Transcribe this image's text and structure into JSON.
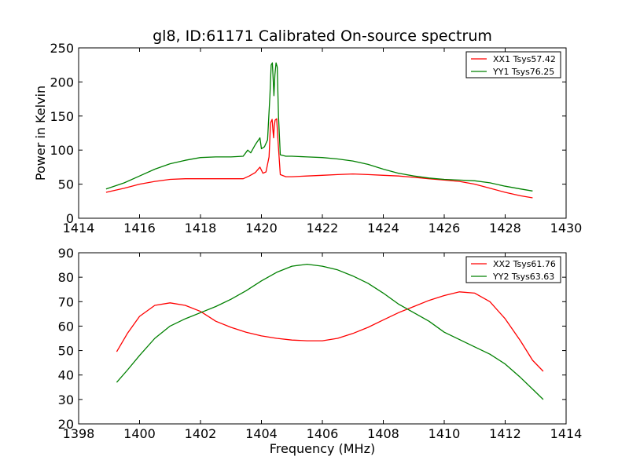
{
  "page": {
    "title": "gl8, ID:61171 Calibrated On-source spectrum"
  },
  "chart_data": [
    {
      "type": "line",
      "title": "gl8, ID:61171 Calibrated On-source spectrum",
      "xlabel": "",
      "ylabel": "Power in Kelvin",
      "xlim": [
        1414,
        1430
      ],
      "ylim": [
        0,
        250
      ],
      "xticks": [
        1414,
        1416,
        1418,
        1420,
        1422,
        1424,
        1426,
        1428,
        1430
      ],
      "yticks": [
        0,
        50,
        100,
        150,
        200,
        250
      ],
      "grid": false,
      "legend_position": "top-right",
      "series": [
        {
          "name": "XX1 Tsys57.42",
          "color": "#ff0000",
          "points": [
            [
              1414.9,
              38
            ],
            [
              1415.5,
              44
            ],
            [
              1416.0,
              50
            ],
            [
              1416.5,
              54
            ],
            [
              1417.0,
              57
            ],
            [
              1417.5,
              58
            ],
            [
              1418.0,
              58
            ],
            [
              1418.5,
              58
            ],
            [
              1419.0,
              58
            ],
            [
              1419.4,
              58
            ],
            [
              1419.6,
              62
            ],
            [
              1419.8,
              67
            ],
            [
              1419.95,
              75
            ],
            [
              1420.05,
              66
            ],
            [
              1420.15,
              68
            ],
            [
              1420.25,
              90
            ],
            [
              1420.3,
              140
            ],
            [
              1420.35,
              145
            ],
            [
              1420.38,
              128
            ],
            [
              1420.4,
              118
            ],
            [
              1420.42,
              135
            ],
            [
              1420.45,
              144
            ],
            [
              1420.5,
              146
            ],
            [
              1420.55,
              110
            ],
            [
              1420.62,
              64
            ],
            [
              1420.8,
              61
            ],
            [
              1421.0,
              61
            ],
            [
              1421.5,
              62
            ],
            [
              1422.0,
              63
            ],
            [
              1422.5,
              64
            ],
            [
              1423.0,
              65
            ],
            [
              1423.5,
              64
            ],
            [
              1424.0,
              63
            ],
            [
              1424.5,
              62
            ],
            [
              1425.0,
              60
            ],
            [
              1425.5,
              58
            ],
            [
              1426.0,
              56
            ],
            [
              1426.5,
              54
            ],
            [
              1427.0,
              50
            ],
            [
              1427.5,
              44
            ],
            [
              1428.0,
              38
            ],
            [
              1428.5,
              33
            ],
            [
              1428.9,
              30
            ]
          ]
        },
        {
          "name": "YY1 Tsys76.25",
          "color": "#008000",
          "points": [
            [
              1414.9,
              43
            ],
            [
              1415.5,
              52
            ],
            [
              1416.0,
              62
            ],
            [
              1416.5,
              72
            ],
            [
              1417.0,
              80
            ],
            [
              1417.5,
              85
            ],
            [
              1418.0,
              89
            ],
            [
              1418.5,
              90
            ],
            [
              1419.0,
              90
            ],
            [
              1419.4,
              91
            ],
            [
              1419.55,
              100
            ],
            [
              1419.65,
              96
            ],
            [
              1419.8,
              108
            ],
            [
              1419.95,
              118
            ],
            [
              1420.0,
              102
            ],
            [
              1420.1,
              105
            ],
            [
              1420.2,
              115
            ],
            [
              1420.28,
              180
            ],
            [
              1420.32,
              225
            ],
            [
              1420.36,
              228
            ],
            [
              1420.39,
              200
            ],
            [
              1420.41,
              180
            ],
            [
              1420.44,
              210
            ],
            [
              1420.48,
              228
            ],
            [
              1420.52,
              222
            ],
            [
              1420.56,
              150
            ],
            [
              1420.62,
              93
            ],
            [
              1420.8,
              91
            ],
            [
              1421.0,
              91
            ],
            [
              1421.5,
              90
            ],
            [
              1422.0,
              89
            ],
            [
              1422.5,
              87
            ],
            [
              1423.0,
              84
            ],
            [
              1423.5,
              79
            ],
            [
              1424.0,
              72
            ],
            [
              1424.5,
              66
            ],
            [
              1425.0,
              62
            ],
            [
              1425.5,
              59
            ],
            [
              1426.0,
              57
            ],
            [
              1426.5,
              56
            ],
            [
              1427.0,
              55
            ],
            [
              1427.5,
              52
            ],
            [
              1428.0,
              47
            ],
            [
              1428.5,
              43
            ],
            [
              1428.9,
              40
            ]
          ]
        }
      ]
    },
    {
      "type": "line",
      "title": "",
      "xlabel": "Frequency (MHz)",
      "ylabel": "",
      "xlim": [
        1398,
        1414
      ],
      "ylim": [
        20,
        90
      ],
      "xticks": [
        1398,
        1400,
        1402,
        1404,
        1406,
        1408,
        1410,
        1412,
        1414
      ],
      "yticks": [
        20,
        30,
        40,
        50,
        60,
        70,
        80,
        90
      ],
      "grid": false,
      "legend_position": "top-right",
      "series": [
        {
          "name": "XX2 Tsys61.76",
          "color": "#ff0000",
          "points": [
            [
              1399.25,
              49.5
            ],
            [
              1399.6,
              57
            ],
            [
              1400.0,
              64
            ],
            [
              1400.5,
              68.5
            ],
            [
              1401.0,
              69.5
            ],
            [
              1401.5,
              68.5
            ],
            [
              1402.0,
              66
            ],
            [
              1402.5,
              62
            ],
            [
              1403.0,
              59.5
            ],
            [
              1403.5,
              57.5
            ],
            [
              1404.0,
              56
            ],
            [
              1404.5,
              55
            ],
            [
              1405.0,
              54.3
            ],
            [
              1405.5,
              54
            ],
            [
              1406.0,
              54
            ],
            [
              1406.5,
              55
            ],
            [
              1407.0,
              57
            ],
            [
              1407.5,
              59.5
            ],
            [
              1408.0,
              62.5
            ],
            [
              1408.5,
              65.5
            ],
            [
              1409.0,
              68
            ],
            [
              1409.5,
              70.5
            ],
            [
              1410.0,
              72.5
            ],
            [
              1410.5,
              74
            ],
            [
              1411.0,
              73.5
            ],
            [
              1411.5,
              70
            ],
            [
              1412.0,
              63
            ],
            [
              1412.5,
              54
            ],
            [
              1412.9,
              46
            ],
            [
              1413.25,
              41.5
            ]
          ]
        },
        {
          "name": "YY2 Tsys63.63",
          "color": "#008000",
          "points": [
            [
              1399.25,
              37
            ],
            [
              1399.6,
              42
            ],
            [
              1400.0,
              48
            ],
            [
              1400.5,
              55
            ],
            [
              1401.0,
              60
            ],
            [
              1401.5,
              63
            ],
            [
              1402.0,
              65.5
            ],
            [
              1402.5,
              68
            ],
            [
              1403.0,
              71
            ],
            [
              1403.5,
              74.5
            ],
            [
              1404.0,
              78.5
            ],
            [
              1404.5,
              82
            ],
            [
              1405.0,
              84.5
            ],
            [
              1405.5,
              85.3
            ],
            [
              1406.0,
              84.5
            ],
            [
              1406.5,
              83
            ],
            [
              1407.0,
              80.5
            ],
            [
              1407.5,
              77.5
            ],
            [
              1408.0,
              73.5
            ],
            [
              1408.5,
              69
            ],
            [
              1409.0,
              65.5
            ],
            [
              1409.5,
              62
            ],
            [
              1410.0,
              57.5
            ],
            [
              1410.5,
              54.5
            ],
            [
              1411.0,
              51.5
            ],
            [
              1411.5,
              48.5
            ],
            [
              1412.0,
              44.5
            ],
            [
              1412.5,
              39
            ],
            [
              1413.0,
              33
            ],
            [
              1413.25,
              30
            ]
          ]
        }
      ]
    }
  ]
}
